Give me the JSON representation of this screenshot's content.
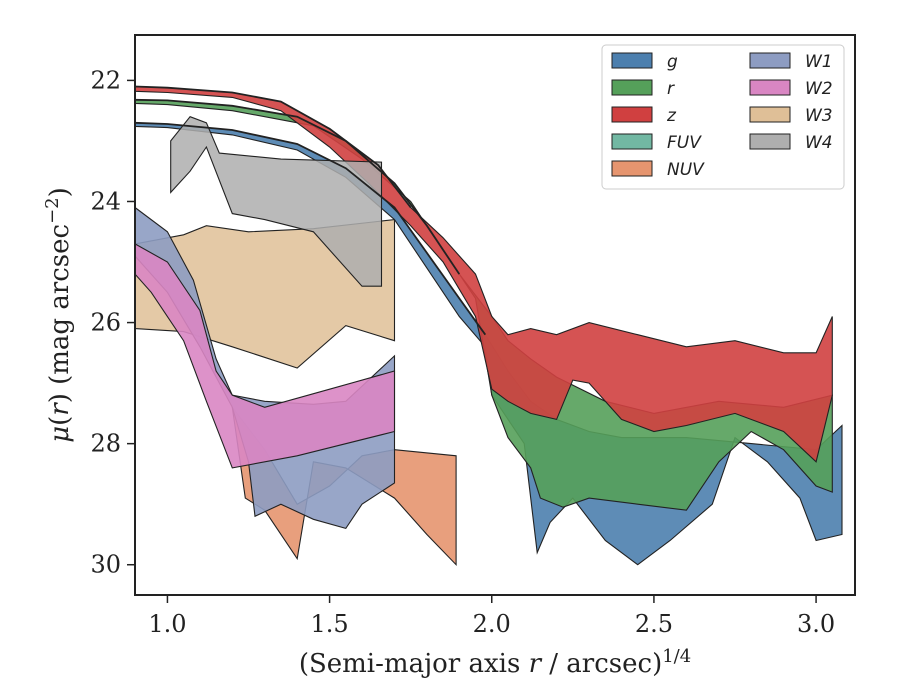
{
  "chart_data": {
    "type": "area",
    "xlabel": "(Semi-major axis r / arcsec)^1/4",
    "ylabel": "μ(r) (mag arcsec^-2)",
    "xlim": [
      0.9,
      3.12
    ],
    "ylim": [
      30.5,
      21.25
    ],
    "y_inverted": true,
    "xticks": [
      {
        "v": 1.0,
        "label": "1.0"
      },
      {
        "v": 1.5,
        "label": "1.5"
      },
      {
        "v": 2.0,
        "label": "2.0"
      },
      {
        "v": 2.5,
        "label": "2.5"
      },
      {
        "v": 3.0,
        "label": "3.0"
      }
    ],
    "yticks": [
      {
        "v": 22,
        "label": "22"
      },
      {
        "v": 24,
        "label": "24"
      },
      {
        "v": 26,
        "label": "26"
      },
      {
        "v": 28,
        "label": "28"
      },
      {
        "v": 30,
        "label": "30"
      }
    ],
    "grid": false,
    "legend_position": "top-right",
    "legend_columns": 2,
    "series": [
      {
        "name": "g",
        "color": "#4c7fae",
        "upper": [
          [
            0.9,
            22.7
          ],
          [
            1.0,
            22.72
          ],
          [
            1.2,
            22.82
          ],
          [
            1.4,
            23.05
          ],
          [
            1.55,
            23.45
          ],
          [
            1.7,
            24.1
          ],
          [
            1.8,
            24.85
          ],
          [
            1.9,
            25.6
          ],
          [
            1.98,
            26.2
          ],
          [
            2.05,
            26.8
          ],
          [
            2.12,
            27.3
          ],
          [
            2.2,
            27.6
          ],
          [
            2.3,
            27.8
          ],
          [
            2.4,
            27.9
          ],
          [
            2.6,
            27.9
          ],
          [
            2.8,
            28
          ],
          [
            3.0,
            28.1
          ],
          [
            3.08,
            27.7
          ]
        ],
        "lower": [
          [
            3.08,
            29.5
          ],
          [
            3.0,
            29.6
          ],
          [
            2.95,
            28.9
          ],
          [
            2.85,
            28.3
          ],
          [
            2.75,
            27.9
          ],
          [
            2.68,
            29.0
          ],
          [
            2.55,
            29.6
          ],
          [
            2.45,
            30.0
          ],
          [
            2.35,
            29.6
          ],
          [
            2.25,
            28.9
          ],
          [
            2.18,
            29.3
          ],
          [
            2.14,
            29.8
          ],
          [
            2.1,
            28.0
          ],
          [
            2.0,
            27.2
          ],
          [
            1.98,
            26.4
          ],
          [
            1.9,
            25.9
          ],
          [
            1.8,
            25.1
          ],
          [
            1.7,
            24.3
          ],
          [
            1.55,
            23.6
          ],
          [
            1.4,
            23.15
          ],
          [
            1.2,
            22.9
          ],
          [
            1.0,
            22.78
          ],
          [
            0.9,
            22.76
          ]
        ]
      },
      {
        "name": "r",
        "color": "#55a05a",
        "upper": [
          [
            0.9,
            22.32
          ],
          [
            1.0,
            22.33
          ],
          [
            1.2,
            22.42
          ],
          [
            1.4,
            22.6
          ],
          [
            1.55,
            23.0
          ],
          [
            1.7,
            23.7
          ],
          [
            1.8,
            24.4
          ],
          [
            1.9,
            25.2
          ],
          [
            2.0,
            25.9
          ],
          [
            2.05,
            26.3
          ],
          [
            2.12,
            26.6
          ],
          [
            2.2,
            26.9
          ],
          [
            2.35,
            27.3
          ],
          [
            2.5,
            27.5
          ],
          [
            2.7,
            27.3
          ],
          [
            2.9,
            27.4
          ],
          [
            3.05,
            27.2
          ]
        ],
        "lower": [
          [
            3.05,
            28.8
          ],
          [
            3.0,
            28.7
          ],
          [
            2.9,
            28.1
          ],
          [
            2.8,
            27.8
          ],
          [
            2.7,
            28.3
          ],
          [
            2.6,
            29.1
          ],
          [
            2.45,
            29.0
          ],
          [
            2.3,
            28.9
          ],
          [
            2.22,
            29.05
          ],
          [
            2.15,
            28.9
          ],
          [
            2.12,
            28.4
          ],
          [
            2.05,
            27.9
          ],
          [
            2.0,
            27.2
          ],
          [
            1.95,
            25.6
          ],
          [
            1.85,
            24.8
          ],
          [
            1.75,
            24.0
          ],
          [
            1.6,
            23.3
          ],
          [
            1.45,
            22.75
          ],
          [
            1.2,
            22.5
          ],
          [
            1.0,
            22.4
          ],
          [
            0.9,
            22.38
          ]
        ]
      },
      {
        "name": "z",
        "color": "#d04040",
        "upper": [
          [
            0.9,
            22.1
          ],
          [
            1.0,
            22.12
          ],
          [
            1.2,
            22.2
          ],
          [
            1.35,
            22.35
          ],
          [
            1.5,
            22.8
          ],
          [
            1.65,
            23.4
          ],
          [
            1.75,
            24.1
          ],
          [
            1.85,
            24.6
          ],
          [
            1.95,
            25.2
          ],
          [
            2.0,
            25.9
          ],
          [
            2.05,
            26.2
          ],
          [
            2.12,
            26.1
          ],
          [
            2.2,
            26.2
          ],
          [
            2.3,
            26.0
          ],
          [
            2.45,
            26.2
          ],
          [
            2.6,
            26.4
          ],
          [
            2.75,
            26.3
          ],
          [
            2.9,
            26.5
          ],
          [
            3.0,
            26.5
          ],
          [
            3.05,
            25.9
          ]
        ],
        "lower": [
          [
            3.05,
            27.2
          ],
          [
            3.0,
            28.3
          ],
          [
            2.9,
            27.8
          ],
          [
            2.75,
            27.5
          ],
          [
            2.6,
            27.7
          ],
          [
            2.5,
            27.8
          ],
          [
            2.4,
            27.6
          ],
          [
            2.3,
            27.0
          ],
          [
            2.25,
            26.95
          ],
          [
            2.2,
            27.6
          ],
          [
            2.12,
            27.5
          ],
          [
            2.05,
            27.3
          ],
          [
            2.0,
            27.1
          ],
          [
            1.95,
            25.9
          ],
          [
            1.85,
            25.0
          ],
          [
            1.75,
            24.4
          ],
          [
            1.62,
            23.7
          ],
          [
            1.5,
            23.1
          ],
          [
            1.35,
            22.5
          ],
          [
            1.2,
            22.28
          ],
          [
            1.0,
            22.2
          ],
          [
            0.9,
            22.18
          ]
        ]
      },
      {
        "name": "FUV",
        "color": "#72b8a3",
        "upper": [],
        "lower": []
      },
      {
        "name": "NUV",
        "color": "#e6956f",
        "upper": [
          [
            1.2,
            27.4
          ],
          [
            1.3,
            28.1
          ],
          [
            1.4,
            29.0
          ],
          [
            1.5,
            28.7
          ],
          [
            1.6,
            28.2
          ],
          [
            1.7,
            28.1
          ],
          [
            1.89,
            28.2
          ]
        ],
        "lower": [
          [
            1.89,
            30.0
          ],
          [
            1.8,
            29.5
          ],
          [
            1.7,
            28.9
          ],
          [
            1.55,
            28.4
          ],
          [
            1.45,
            28.3
          ],
          [
            1.4,
            29.9
          ],
          [
            1.3,
            29.1
          ],
          [
            1.24,
            28.9
          ]
        ]
      },
      {
        "name": "W1",
        "color": "#8d9cc2",
        "upper": [
          [
            0.9,
            24.1
          ],
          [
            1.0,
            24.5
          ],
          [
            1.08,
            25.3
          ],
          [
            1.15,
            26.6
          ],
          [
            1.2,
            27.2
          ],
          [
            1.3,
            27.3
          ],
          [
            1.45,
            27.35
          ],
          [
            1.55,
            27.3
          ],
          [
            1.7,
            26.55
          ]
        ],
        "lower": [
          [
            1.7,
            28.65
          ],
          [
            1.6,
            29.0
          ],
          [
            1.55,
            29.4
          ],
          [
            1.45,
            29.25
          ],
          [
            1.35,
            29.0
          ],
          [
            1.27,
            29.2
          ],
          [
            1.25,
            28.3
          ],
          [
            1.2,
            27.4
          ],
          [
            1.1,
            26.4
          ],
          [
            1.0,
            25.5
          ],
          [
            0.9,
            24.9
          ]
        ]
      },
      {
        "name": "W2",
        "color": "#d986c3",
        "upper": [
          [
            0.9,
            24.7
          ],
          [
            1.0,
            25.0
          ],
          [
            1.1,
            25.8
          ],
          [
            1.15,
            26.8
          ],
          [
            1.2,
            27.2
          ],
          [
            1.3,
            27.4
          ],
          [
            1.5,
            27.1
          ],
          [
            1.7,
            26.8
          ]
        ],
        "lower": [
          [
            1.7,
            27.8
          ],
          [
            1.4,
            28.2
          ],
          [
            1.2,
            28.4
          ],
          [
            1.12,
            27.3
          ],
          [
            1.05,
            26.3
          ],
          [
            0.95,
            25.5
          ],
          [
            0.9,
            25.2
          ]
        ]
      },
      {
        "name": "W3",
        "color": "#dfbf97",
        "upper": [
          [
            0.9,
            24.7
          ],
          [
            1.05,
            24.55
          ],
          [
            1.12,
            24.4
          ],
          [
            1.25,
            24.5
          ],
          [
            1.45,
            24.45
          ],
          [
            1.7,
            24.3
          ]
        ],
        "lower": [
          [
            1.7,
            26.3
          ],
          [
            1.55,
            26.05
          ],
          [
            1.4,
            26.75
          ],
          [
            1.2,
            26.4
          ],
          [
            1.05,
            26.15
          ],
          [
            0.9,
            26.1
          ]
        ]
      },
      {
        "name": "W4",
        "color": "#aeaeae",
        "upper": [
          [
            1.01,
            23.0
          ],
          [
            1.07,
            22.6
          ],
          [
            1.12,
            22.7
          ],
          [
            1.16,
            23.2
          ],
          [
            1.35,
            23.3
          ],
          [
            1.66,
            23.35
          ]
        ],
        "lower": [
          [
            1.66,
            25.4
          ],
          [
            1.6,
            25.4
          ],
          [
            1.45,
            24.5
          ],
          [
            1.3,
            24.3
          ],
          [
            1.2,
            24.2
          ],
          [
            1.12,
            23.1
          ],
          [
            1.07,
            23.5
          ],
          [
            1.01,
            23.85
          ]
        ]
      }
    ],
    "profile_lines": [
      {
        "series": "g",
        "points": [
          [
            0.9,
            22.7
          ],
          [
            1.0,
            22.72
          ],
          [
            1.2,
            22.82
          ],
          [
            1.4,
            23.05
          ],
          [
            1.55,
            23.45
          ],
          [
            1.7,
            24.1
          ],
          [
            1.8,
            24.85
          ],
          [
            1.9,
            25.6
          ],
          [
            1.98,
            26.2
          ]
        ]
      },
      {
        "series": "r",
        "points": [
          [
            0.9,
            22.32
          ],
          [
            1.0,
            22.33
          ],
          [
            1.2,
            22.42
          ],
          [
            1.4,
            22.6
          ],
          [
            1.55,
            23.0
          ],
          [
            1.7,
            23.7
          ],
          [
            1.8,
            24.4
          ],
          [
            1.9,
            25.2
          ]
        ]
      },
      {
        "series": "z",
        "points": [
          [
            0.9,
            22.1
          ],
          [
            1.0,
            22.12
          ],
          [
            1.2,
            22.2
          ],
          [
            1.35,
            22.35
          ],
          [
            1.5,
            22.8
          ],
          [
            1.65,
            23.4
          ],
          [
            1.75,
            24.1
          ]
        ]
      }
    ],
    "legend": [
      {
        "name": "g",
        "color": "#4c7fae"
      },
      {
        "name": "r",
        "color": "#55a05a"
      },
      {
        "name": "z",
        "color": "#d04040"
      },
      {
        "name": "FUV",
        "color": "#72b8a3"
      },
      {
        "name": "NUV",
        "color": "#e6956f"
      },
      {
        "name": "W1",
        "color": "#8d9cc2"
      },
      {
        "name": "W2",
        "color": "#d986c3"
      },
      {
        "name": "W3",
        "color": "#dfbf97"
      },
      {
        "name": "W4",
        "color": "#aeaeae"
      }
    ]
  }
}
